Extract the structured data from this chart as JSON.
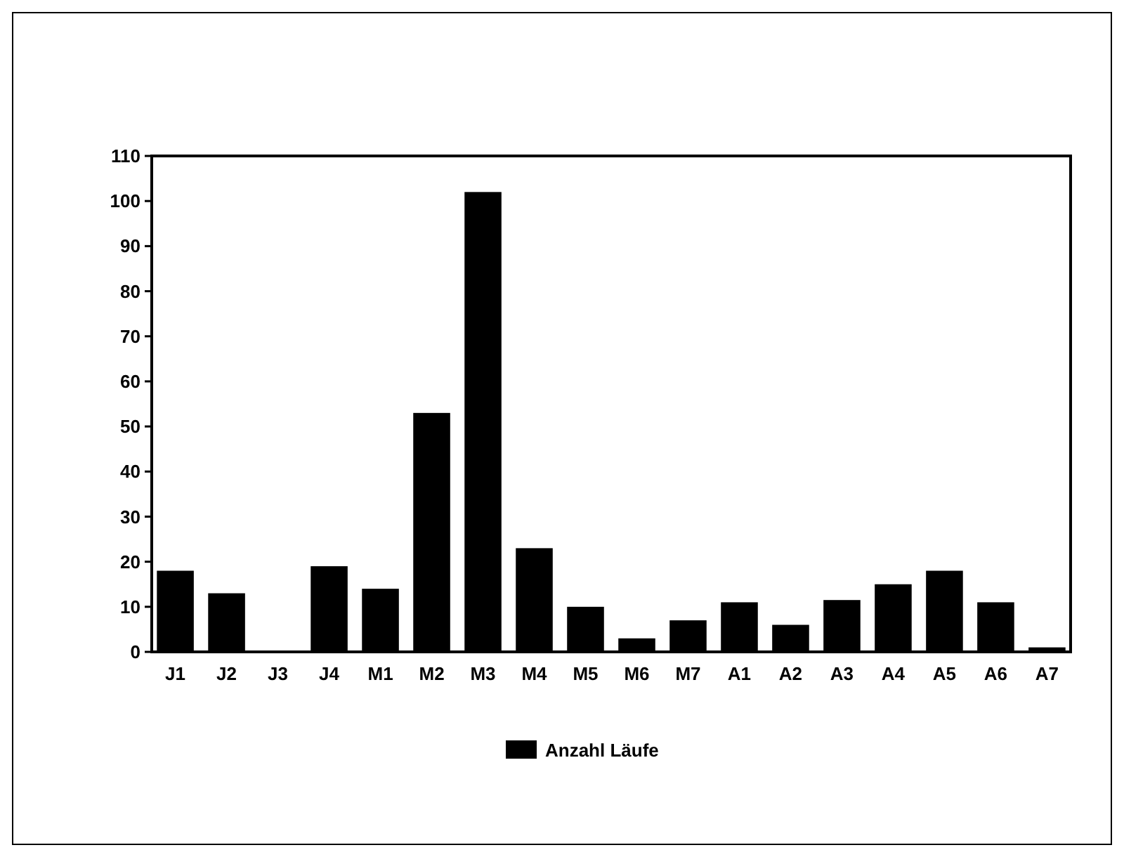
{
  "chart_data": {
    "type": "bar",
    "categories": [
      "J1",
      "J2",
      "J3",
      "J4",
      "M1",
      "M2",
      "M3",
      "M4",
      "M5",
      "M6",
      "M7",
      "A1",
      "A2",
      "A3",
      "A4",
      "A5",
      "A6",
      "A7"
    ],
    "series": [
      {
        "name": "Anzahl Läufe",
        "color": "#000000",
        "values": [
          18,
          13,
          0,
          19,
          14,
          53,
          102,
          23,
          10,
          3,
          7,
          11,
          6,
          11.5,
          15,
          18,
          11,
          1
        ]
      }
    ],
    "ylim": [
      0,
      110
    ],
    "yticks": [
      0,
      10,
      20,
      30,
      40,
      50,
      60,
      70,
      80,
      90,
      100,
      110
    ],
    "grid": false,
    "legend": "bottom"
  }
}
